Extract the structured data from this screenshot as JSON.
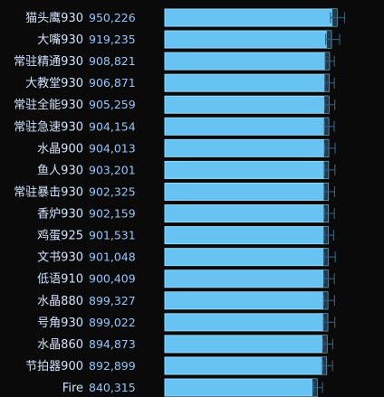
{
  "chart_data": {
    "type": "bar",
    "orientation": "horizontal",
    "categories": [
      "猫头鹰930",
      "大嘴930",
      "常驻精通930",
      "大教堂930",
      "常驻全能930",
      "常驻急速930",
      "水晶900",
      "鱼人930",
      "常驻暴击930",
      "香炉930",
      "鸡蛋925",
      "文书930",
      "低语910",
      "水晶880",
      "号角930",
      "水晶860",
      "节拍器900",
      "Fire"
    ],
    "value_labels": [
      "950,226",
      "919,235",
      "908,821",
      "906,871",
      "905,259",
      "904,154",
      "904,013",
      "903,201",
      "902,325",
      "902,159",
      "901,531",
      "901,048",
      "900,409",
      "899,327",
      "899,022",
      "894,873",
      "892,899",
      "840,315"
    ],
    "values": [
      950226,
      919235,
      908821,
      906871,
      905259,
      904154,
      904013,
      903201,
      902325,
      902159,
      901531,
      901048,
      900409,
      899327,
      899022,
      894873,
      892899,
      840315
    ],
    "range_low": [
      915000,
      888000,
      886000,
      884000,
      883000,
      882000,
      883000,
      882000,
      881000,
      881000,
      880000,
      879000,
      879000,
      878000,
      877000,
      873000,
      872000,
      822000
    ],
    "range_high": [
      992000,
      965000,
      936000,
      936000,
      938000,
      935000,
      940000,
      939000,
      937000,
      936000,
      932000,
      941000,
      936000,
      937000,
      938000,
      927000,
      926000,
      870000
    ],
    "xlim": [
      0,
      1040000
    ],
    "colors": {
      "bar": "#66c3f2",
      "bar_border": "#99d8f8",
      "whisker": "#2e5c7a",
      "tip": "#1f3a4d",
      "label": "#cfe3ff",
      "value": "#8ec8ff"
    }
  }
}
